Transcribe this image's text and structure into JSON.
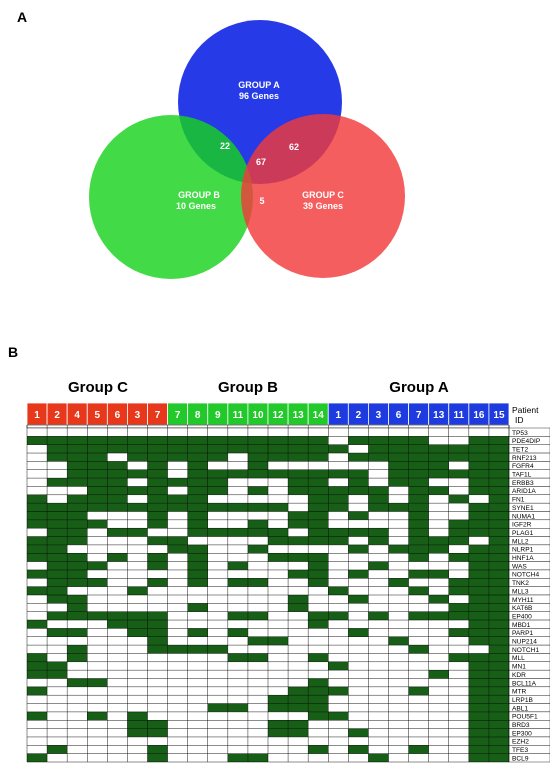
{
  "panels": {
    "a_label": "A",
    "b_label": "B"
  },
  "venn": {
    "circles": [
      {
        "id": "A",
        "name_line": "GROUP A",
        "count_line": "96 Genes",
        "color": "#1a2fe6"
      },
      {
        "id": "B",
        "name_line": "GROUP B",
        "count_line": "10 Genes",
        "color": "#18d21e"
      },
      {
        "id": "C",
        "name_line": "GROUP C",
        "count_line": "39 Genes",
        "color": "#f23b3b"
      }
    ],
    "overlaps": {
      "AB": "22",
      "AC": "62",
      "ABC": "67",
      "BC": "5"
    }
  },
  "heatmap": {
    "group_titles": {
      "C": "Group C",
      "B": "Group B",
      "A": "Group A"
    },
    "patient_id_label_line1": "Patient",
    "patient_id_label_line2": "ID",
    "columns": [
      {
        "label": "1",
        "group": "C"
      },
      {
        "label": "2",
        "group": "C"
      },
      {
        "label": "4",
        "group": "C"
      },
      {
        "label": "5",
        "group": "C"
      },
      {
        "label": "6",
        "group": "C"
      },
      {
        "label": "3",
        "group": "C"
      },
      {
        "label": "7",
        "group": "C"
      },
      {
        "label": "7",
        "group": "B"
      },
      {
        "label": "8",
        "group": "B"
      },
      {
        "label": "9",
        "group": "B"
      },
      {
        "label": "11",
        "group": "B"
      },
      {
        "label": "10",
        "group": "B"
      },
      {
        "label": "12",
        "group": "B"
      },
      {
        "label": "13",
        "group": "B"
      },
      {
        "label": "14",
        "group": "B"
      },
      {
        "label": "1",
        "group": "A"
      },
      {
        "label": "2",
        "group": "A"
      },
      {
        "label": "3",
        "group": "A"
      },
      {
        "label": "6",
        "group": "A"
      },
      {
        "label": "7",
        "group": "A"
      },
      {
        "label": "13",
        "group": "A"
      },
      {
        "label": "11",
        "group": "A"
      },
      {
        "label": "16",
        "group": "A"
      },
      {
        "label": "15",
        "group": "A"
      }
    ],
    "group_colors": {
      "C": "#e8381c",
      "B": "#22c92a",
      "A": "#1e3be0"
    },
    "mutated_color": "#175e17",
    "genes": [
      "TP53",
      "PDE4DIP",
      "TET2",
      "RNF213",
      "FGFR4",
      "TAF1L",
      "ERBB3",
      "ARID1A",
      "FN1",
      "SYNE1",
      "NUMA1",
      "IGF2R",
      "PLAG1",
      "MLL2",
      "NLRP1",
      "HNF1A",
      "WAS",
      "NOTCH4",
      "TNK2",
      "MLL3",
      "MYH11",
      "KAT6B",
      "EP400",
      "MBD1",
      "PARP1",
      "NUP214",
      "NOTCH1",
      "MLL",
      "MN1",
      "KDR",
      "BCL11A",
      "MTR",
      "LRP1B",
      "ABL1",
      "POU5F1",
      "BRD3",
      "EP300",
      "EZH2",
      "TFE3",
      "BCL9"
    ],
    "matrix": [
      "000000000000000000000000",
      "111111111111111011110011",
      "011111111111111101111111",
      "011101111101111011111111",
      "001110101001000000111011",
      "001111101111111110111111",
      "011110111100011010110011",
      "000111101101011111011011",
      "101110111000001101010101",
      "111111111111101101110011",
      "111000101000011010010011",
      "111100101001011000010111",
      "011011001111101111010111",
      "111000110000111101011101",
      "110000011001000010111011",
      "111010101000111000010111",
      "011100101010001001000011",
      "111000001000011010011011",
      "011100101011001000100111",
      "110001000000000100010111",
      "011000000000010010001011",
      "001000001000010000000111",
      "011111100011001101011111",
      "100011100000001000000011",
      "011001101010000010000111",
      "000000100001100000100011",
      "001000111100000000010001",
      "101000000011001000000111",
      "110000000000000100000011",
      "110000000000000000001011",
      "001100000000001000000011",
      "100000000000011100010011",
      "000000000000111000000011",
      "000000000110111000000011",
      "100101000000001100000011",
      "000001100000110000000011",
      "000001100000110010000011",
      "000000000000000000000011",
      "010000100000001010010011",
      "100000100011000001000011"
    ]
  }
}
